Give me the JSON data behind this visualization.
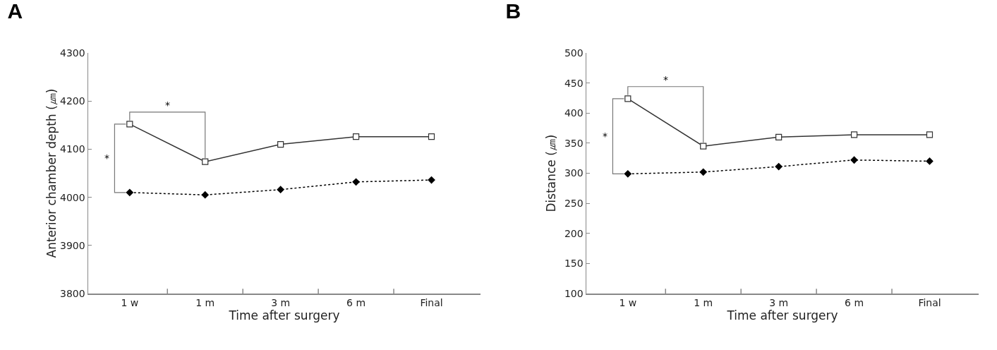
{
  "chart_data": [
    {
      "type": "line",
      "title": "A",
      "xlabel": "Time after surgery",
      "ylabel": "Anterior chamber depth (㎛)",
      "categories": [
        "1 w",
        "1 m",
        "3 m",
        "6 m",
        "Final"
      ],
      "ylim": [
        3800,
        4300
      ],
      "yticks": [
        3800,
        3900,
        4000,
        4100,
        4200,
        4300
      ],
      "grid": false,
      "annotations": [
        "*",
        "*"
      ],
      "series": [
        {
          "color": "#000000",
          "marker": "diamond",
          "line_style": "dotted",
          "values": [
            4010,
            4005,
            4016,
            4032,
            4036
          ]
        },
        {
          "color": "#333333",
          "marker": "square",
          "line_style": "solid",
          "values": [
            4152,
            4074,
            4110,
            4126,
            4126
          ]
        }
      ]
    },
    {
      "type": "line",
      "title": "B",
      "xlabel": "Time after surgery",
      "ylabel": "Distance (㎛)",
      "categories": [
        "1 w",
        "1 m",
        "3 m",
        "6 m",
        "Final"
      ],
      "ylim": [
        100,
        500
      ],
      "yticks": [
        100,
        150,
        200,
        250,
        300,
        350,
        400,
        450,
        500
      ],
      "grid": false,
      "annotations": [
        "*",
        "*"
      ],
      "series": [
        {
          "color": "#000000",
          "marker": "diamond",
          "line_style": "dotted",
          "values": [
            299,
            302,
            311,
            322,
            320
          ]
        },
        {
          "color": "#333333",
          "marker": "square",
          "line_style": "solid",
          "values": [
            424,
            345,
            360,
            364,
            364
          ]
        }
      ]
    }
  ]
}
